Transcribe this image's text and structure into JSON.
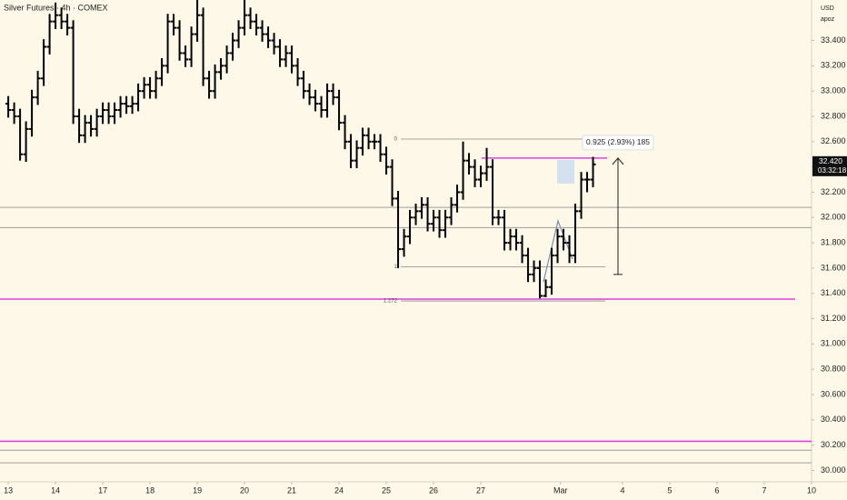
{
  "chart_data": {
    "type": "ohlc",
    "title": "Silver Futures · 4h · COMEX",
    "currency": "USD",
    "axis_note": "apoz",
    "xlim": [
      -1.4,
      136
    ],
    "xticks": [
      {
        "value": 0,
        "label": "13"
      },
      {
        "value": 8,
        "label": "14"
      },
      {
        "value": 16,
        "label": "17"
      },
      {
        "value": 24,
        "label": "18"
      },
      {
        "value": 32,
        "label": "19"
      },
      {
        "value": 40,
        "label": "20"
      },
      {
        "value": 48,
        "label": "21"
      },
      {
        "value": 56,
        "label": "24"
      },
      {
        "value": 64,
        "label": "25"
      },
      {
        "value": 72,
        "label": "26"
      },
      {
        "value": 80,
        "label": "27"
      },
      {
        "value": 93.5,
        "label": "Mar"
      },
      {
        "value": 104,
        "label": "4"
      },
      {
        "value": 112,
        "label": "5"
      },
      {
        "value": 120,
        "label": "6"
      },
      {
        "value": 128,
        "label": "7"
      },
      {
        "value": 136,
        "label": "10"
      }
    ],
    "ylim": [
      29.91,
      33.72
    ],
    "yticks": [
      {
        "value": 30.0,
        "label": "30.000"
      },
      {
        "value": 30.2,
        "label": "30.200"
      },
      {
        "value": 30.4,
        "label": "30.400"
      },
      {
        "value": 30.6,
        "label": "30.600"
      },
      {
        "value": 30.8,
        "label": "30.800"
      },
      {
        "value": 31.0,
        "label": "31.000"
      },
      {
        "value": 31.2,
        "label": "31.200"
      },
      {
        "value": 31.4,
        "label": "31.400"
      },
      {
        "value": 31.6,
        "label": "31.600"
      },
      {
        "value": 31.8,
        "label": "31.800"
      },
      {
        "value": 32.0,
        "label": "32.000"
      },
      {
        "value": 32.2,
        "label": "32.200"
      },
      {
        "value": 32.4,
        "label": "32.400"
      },
      {
        "value": 32.6,
        "label": "32.600"
      },
      {
        "value": 32.8,
        "label": "32.800"
      },
      {
        "value": 33.0,
        "label": "33.000"
      },
      {
        "value": 33.2,
        "label": "33.200"
      },
      {
        "value": 33.4,
        "label": "33.400"
      }
    ],
    "color": "#000000",
    "open": [
      32.9,
      32.85,
      32.8,
      32.5,
      32.7,
      32.95,
      33.1,
      33.35,
      33.55,
      33.6,
      33.55,
      33.5,
      32.8,
      32.65,
      32.75,
      32.7,
      32.8,
      32.85,
      32.8,
      32.85,
      32.9,
      32.88,
      32.9,
      33.0,
      33.05,
      33.0,
      33.1,
      33.2,
      33.55,
      33.5,
      33.3,
      33.25,
      33.45,
      33.6,
      33.1,
      33.0,
      33.15,
      33.2,
      33.3,
      33.4,
      33.5,
      33.6,
      33.55,
      33.5,
      33.45,
      33.4,
      33.35,
      33.25,
      33.3,
      33.2,
      33.1,
      33.0,
      32.95,
      32.9,
      32.85,
      33.0,
      32.95,
      32.75,
      32.6,
      32.45,
      32.55,
      32.65,
      32.6,
      32.6,
      32.5,
      32.4,
      32.15,
      31.75,
      31.85,
      32.0,
      32.05,
      32.1,
      31.95,
      32.0,
      31.9,
      32.0,
      32.1,
      32.2,
      32.45,
      32.4,
      32.3,
      32.35,
      32.4,
      32.0,
      32.0,
      31.8,
      31.85,
      31.8,
      31.7,
      31.55,
      31.6,
      31.38,
      31.45,
      31.7,
      31.85,
      31.8,
      31.7,
      32.05,
      32.3,
      32.3
    ],
    "high": [
      32.96,
      32.91,
      32.86,
      32.76,
      33.01,
      33.16,
      33.41,
      33.61,
      33.7,
      33.66,
      33.61,
      33.56,
      32.86,
      32.81,
      32.81,
      32.86,
      32.91,
      32.91,
      32.91,
      32.96,
      32.96,
      32.96,
      33.06,
      33.11,
      33.11,
      33.16,
      33.26,
      33.61,
      33.61,
      33.56,
      33.36,
      33.51,
      33.75,
      33.66,
      33.16,
      33.21,
      33.26,
      33.36,
      33.46,
      33.56,
      33.75,
      33.66,
      33.61,
      33.56,
      33.51,
      33.46,
      33.41,
      33.36,
      33.36,
      33.26,
      33.16,
      33.06,
      33.01,
      32.96,
      33.06,
      33.06,
      33.01,
      32.81,
      32.66,
      32.61,
      32.71,
      32.71,
      32.66,
      32.66,
      32.56,
      32.46,
      32.21,
      31.91,
      32.06,
      32.11,
      32.16,
      32.16,
      32.06,
      32.06,
      32.06,
      32.16,
      32.26,
      32.6,
      32.51,
      32.46,
      32.41,
      32.55,
      32.46,
      32.06,
      32.06,
      31.91,
      31.91,
      31.86,
      31.76,
      31.66,
      31.66,
      31.51,
      31.76,
      31.91,
      31.91,
      31.86,
      32.11,
      32.36,
      32.36,
      32.48
    ],
    "low": [
      32.79,
      32.74,
      32.45,
      32.44,
      32.64,
      32.89,
      33.04,
      33.29,
      33.49,
      33.49,
      33.44,
      32.74,
      32.59,
      32.59,
      32.64,
      32.64,
      32.74,
      32.74,
      32.74,
      32.79,
      32.82,
      32.82,
      32.84,
      32.94,
      32.94,
      32.94,
      33.04,
      33.14,
      33.44,
      33.24,
      33.19,
      33.19,
      33.39,
      33.04,
      32.94,
      32.94,
      33.09,
      33.14,
      33.24,
      33.34,
      33.44,
      33.49,
      33.44,
      33.39,
      33.34,
      33.29,
      33.19,
      33.19,
      33.14,
      33.04,
      32.94,
      32.89,
      32.84,
      32.79,
      32.79,
      32.89,
      32.69,
      32.54,
      32.39,
      32.39,
      32.49,
      32.54,
      32.54,
      32.44,
      32.34,
      32.09,
      31.6,
      31.69,
      31.79,
      31.94,
      31.99,
      31.89,
      31.89,
      31.84,
      31.84,
      31.94,
      32.04,
      32.14,
      32.34,
      32.24,
      32.24,
      32.29,
      31.94,
      31.94,
      31.74,
      31.74,
      31.74,
      31.64,
      31.49,
      31.49,
      31.36,
      31.37,
      31.39,
      31.64,
      31.74,
      31.64,
      31.64,
      31.99,
      32.2,
      32.24
    ],
    "close": [
      32.85,
      32.8,
      32.5,
      32.7,
      32.95,
      33.1,
      33.35,
      33.55,
      33.6,
      33.55,
      33.5,
      32.8,
      32.65,
      32.75,
      32.7,
      32.8,
      32.85,
      32.8,
      32.85,
      32.9,
      32.88,
      32.9,
      33.0,
      33.05,
      33.0,
      33.1,
      33.2,
      33.55,
      33.5,
      33.3,
      33.25,
      33.45,
      33.6,
      33.1,
      33.0,
      33.15,
      33.2,
      33.3,
      33.4,
      33.5,
      33.6,
      33.55,
      33.5,
      33.45,
      33.4,
      33.35,
      33.25,
      33.3,
      33.2,
      33.1,
      33.0,
      32.95,
      32.9,
      32.85,
      33.0,
      32.95,
      32.75,
      32.6,
      32.45,
      32.55,
      32.65,
      32.6,
      32.6,
      32.5,
      32.4,
      32.15,
      31.75,
      31.85,
      32.0,
      32.05,
      32.1,
      31.95,
      32.0,
      31.9,
      32.0,
      32.1,
      32.2,
      32.45,
      32.4,
      32.3,
      32.35,
      32.4,
      32.0,
      32.0,
      31.8,
      31.85,
      31.8,
      31.7,
      31.55,
      31.6,
      31.38,
      31.45,
      31.7,
      31.85,
      31.8,
      31.7,
      32.05,
      32.3,
      32.3,
      32.42
    ],
    "horizontal_lines": [
      {
        "value": 32.08,
        "color": "#9e9e9e"
      },
      {
        "value": 31.92,
        "color": "#9e9e9e"
      },
      {
        "value": 31.355,
        "color": "#e040e0"
      },
      {
        "value": 30.23,
        "color": "#e040e0"
      },
      {
        "value": 30.16,
        "color": "#9e9e9e"
      },
      {
        "value": 30.06,
        "color": "#9e9e9e"
      }
    ],
    "fib_levels": [
      {
        "label": "0",
        "price": 32.62
      },
      {
        "label": "1",
        "price": 31.61
      },
      {
        "label": "1.272",
        "price": 31.34
      }
    ],
    "measure": {
      "label": "0.925 (2.93%) 185",
      "from": 31.55,
      "to": 32.47
    },
    "last_price": {
      "label": "32.420",
      "value": 32.42
    },
    "countdown": "03:32:18"
  }
}
